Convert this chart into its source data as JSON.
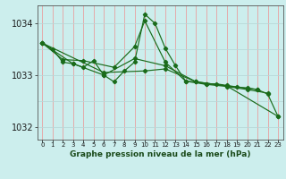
{
  "title": "Graphe pression niveau de la mer (hPa)",
  "background_color": "#cceeed",
  "grid_color_v": "#e8a0a0",
  "grid_color_h": "#b8d8d8",
  "line_color": "#1a6b1a",
  "ylim": [
    1031.75,
    1034.35
  ],
  "xlim": [
    -0.5,
    23.5
  ],
  "yticks": [
    1032,
    1033,
    1034
  ],
  "xtick_labels": [
    "0",
    "1",
    "2",
    "3",
    "4",
    "5",
    "6",
    "7",
    "8",
    "9",
    "10",
    "11",
    "12",
    "13",
    "14",
    "15",
    "16",
    "17",
    "18",
    "19",
    "20",
    "21",
    "22",
    "23"
  ],
  "series": [
    {
      "x": [
        0,
        1,
        2,
        3,
        4,
        5,
        6,
        7,
        8,
        9,
        10,
        11,
        12,
        13,
        14,
        15,
        16,
        17,
        18,
        19,
        20,
        21,
        22,
        23
      ],
      "y": [
        1033.62,
        1033.5,
        1033.25,
        1033.22,
        1033.15,
        1033.28,
        1033.0,
        1032.87,
        1033.08,
        1033.25,
        1034.18,
        1034.0,
        1033.52,
        1033.18,
        1032.88,
        1032.87,
        1032.82,
        1032.83,
        1032.8,
        1032.77,
        1032.75,
        1032.72,
        1032.63,
        1032.2
      ]
    },
    {
      "x": [
        0,
        2,
        4,
        7,
        9,
        10,
        12,
        14,
        16,
        18,
        20,
        22
      ],
      "y": [
        1033.62,
        1033.3,
        1033.28,
        1033.15,
        1033.55,
        1034.05,
        1033.25,
        1032.88,
        1032.82,
        1032.78,
        1032.72,
        1032.65
      ]
    },
    {
      "x": [
        0,
        3,
        6,
        9,
        12,
        15,
        18,
        21
      ],
      "y": [
        1033.62,
        1033.22,
        1033.0,
        1033.32,
        1033.18,
        1032.87,
        1032.79,
        1032.72
      ]
    },
    {
      "x": [
        0,
        6,
        10,
        12,
        15,
        18,
        23
      ],
      "y": [
        1033.62,
        1033.05,
        1033.08,
        1033.12,
        1032.87,
        1032.79,
        1032.2
      ]
    }
  ]
}
